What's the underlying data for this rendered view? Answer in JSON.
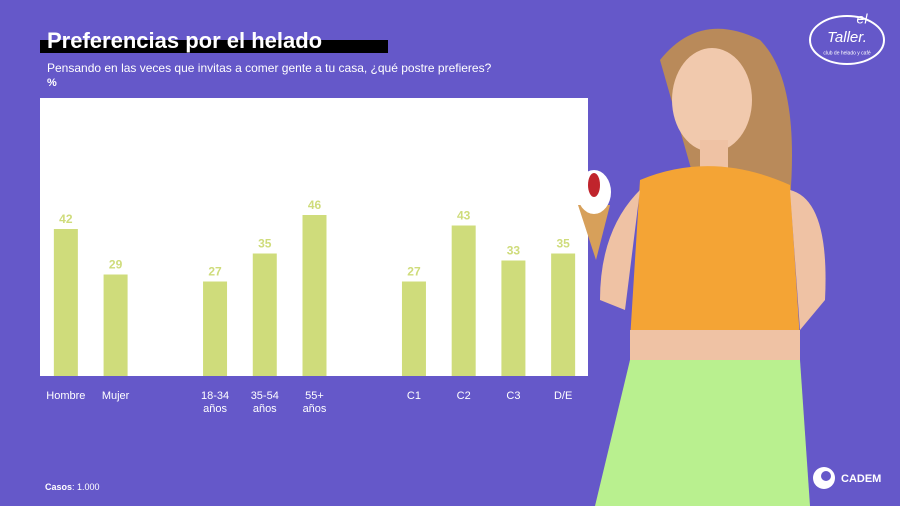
{
  "title": "Preferencias por el helado",
  "subtitle": "Pensando en las veces que invitas a comer gente a tu casa, ¿qué postre prefieres?",
  "unit": "%",
  "chart_data": {
    "type": "bar",
    "categories": [
      "Hombre",
      "Mujer",
      null,
      "18-34 años",
      "35-54 años",
      "55+ años",
      null,
      "C1",
      "C2",
      "C3",
      "D/E"
    ],
    "values": [
      42,
      29,
      null,
      27,
      35,
      46,
      null,
      27,
      43,
      33,
      35
    ],
    "color": "#cfdc7b"
  },
  "footer": {
    "label": "Casos",
    "value": ": 1.000"
  },
  "logos": {
    "brand_top": "el",
    "brand_main": "Taller.",
    "brand_tag": "club de helado y café",
    "partner": "CADEM"
  }
}
